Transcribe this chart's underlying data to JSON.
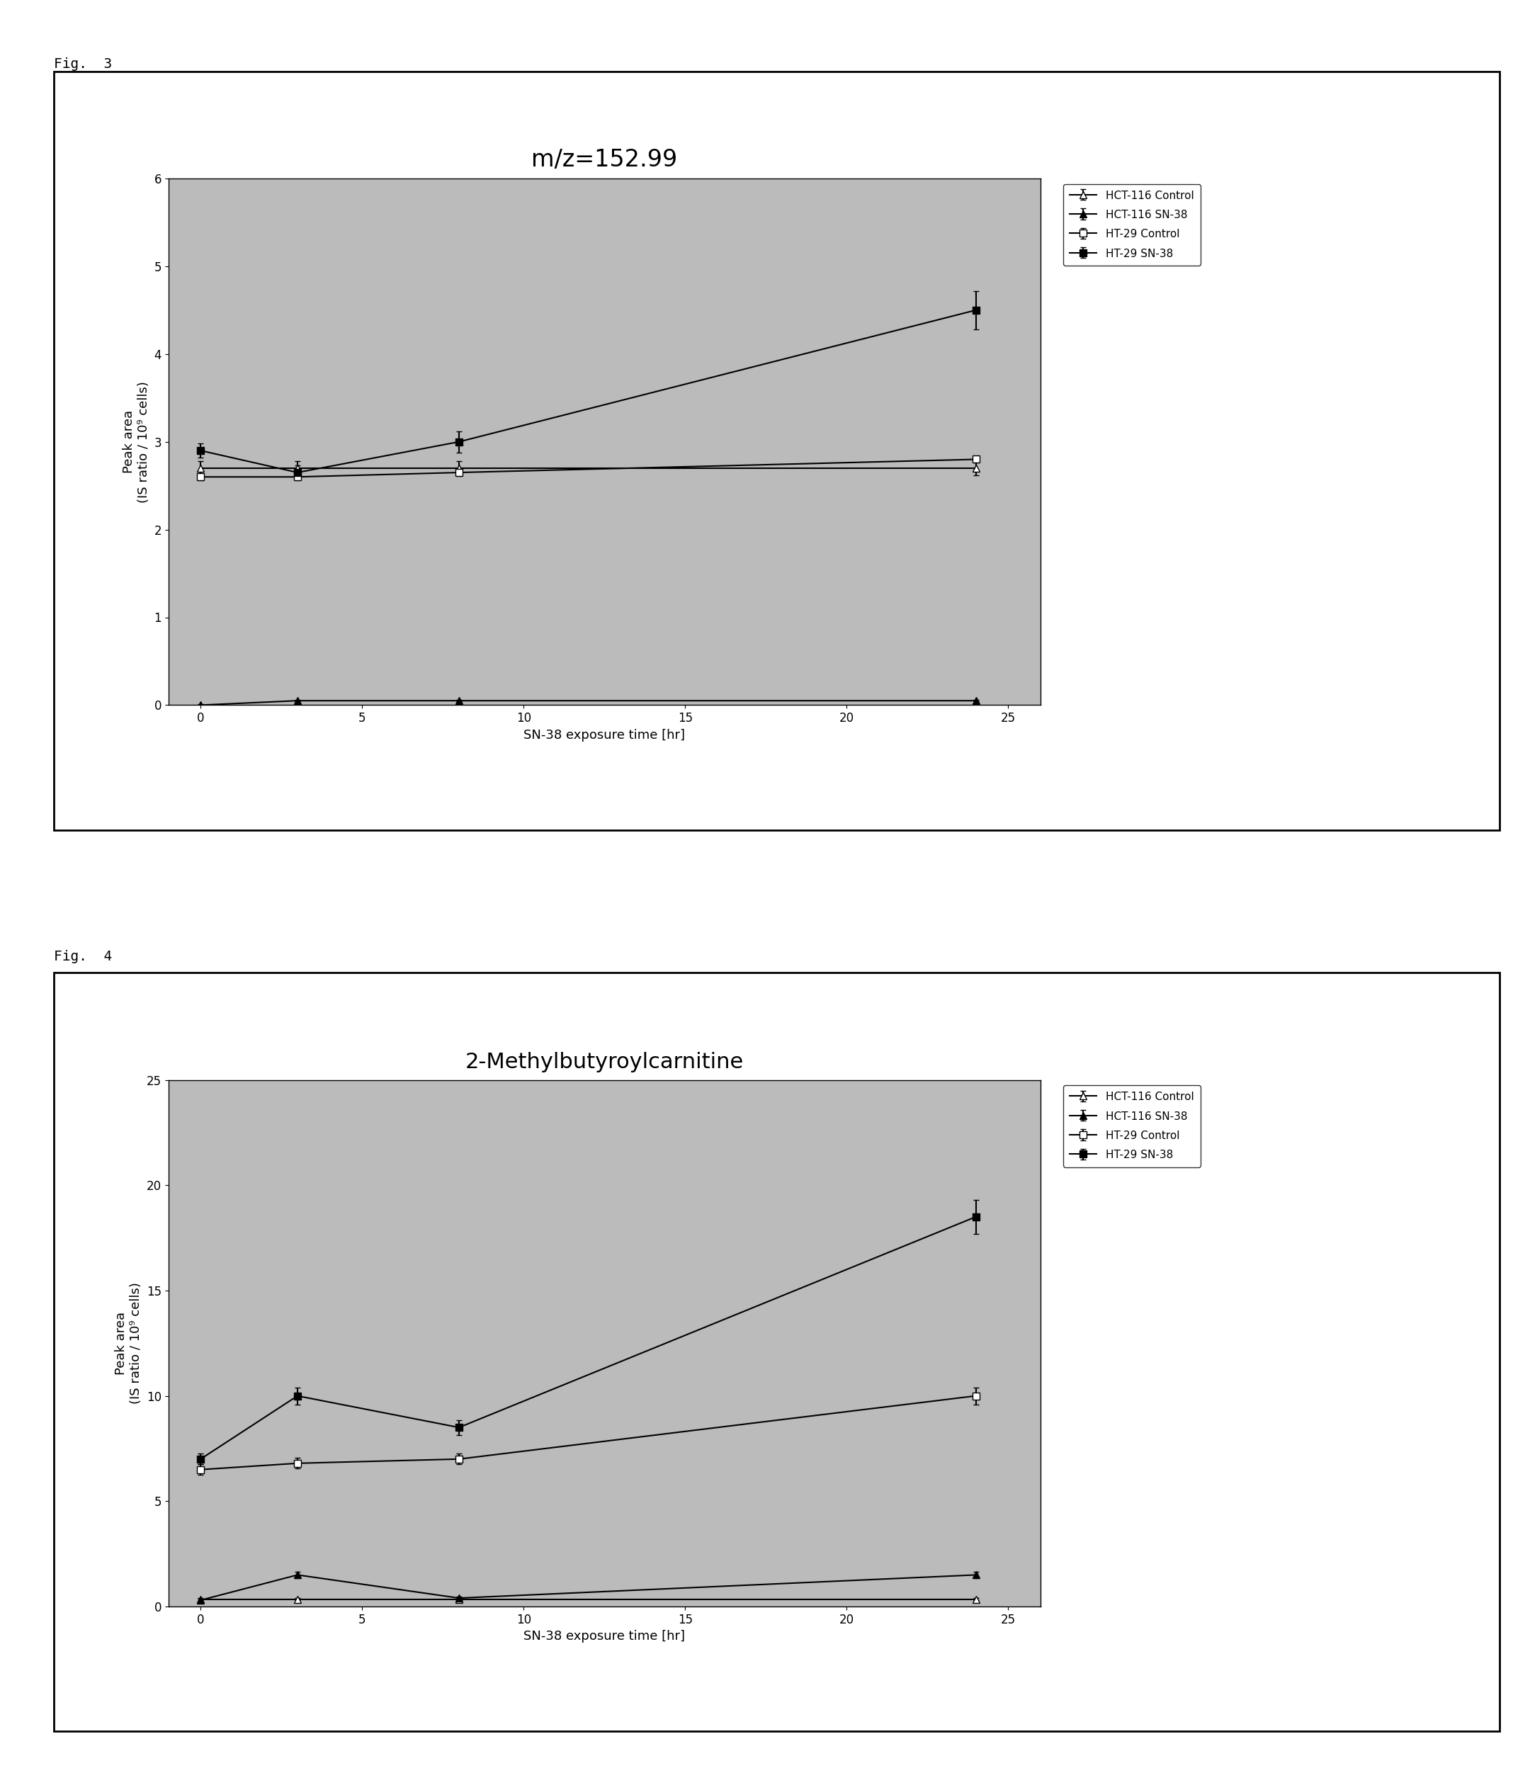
{
  "fig3": {
    "title": "m/z=152.99",
    "xlabel": "SN-38 exposure time [hr]",
    "ylabel": "Peak area\n(IS ratio / 10⁹ cells)",
    "xlim": [
      -1,
      26
    ],
    "ylim": [
      0,
      6
    ],
    "yticks": [
      0,
      1,
      2,
      3,
      4,
      5,
      6
    ],
    "xticks": [
      0,
      5,
      10,
      15,
      20,
      25
    ],
    "x": [
      0,
      3,
      8,
      24
    ],
    "hct116_control": [
      2.7,
      2.7,
      2.7,
      2.7
    ],
    "hct116_sn38": [
      0.0,
      0.05,
      0.05,
      0.05
    ],
    "ht29_control": [
      2.6,
      2.6,
      2.65,
      2.8
    ],
    "ht29_sn38": [
      2.9,
      2.65,
      3.0,
      4.5
    ],
    "hct116_control_err": [
      0.08,
      0.08,
      0.08,
      0.08
    ],
    "hct116_sn38_err": [
      0.01,
      0.01,
      0.01,
      0.01
    ],
    "ht29_control_err": [
      0.04,
      0.04,
      0.04,
      0.04
    ],
    "ht29_sn38_err": [
      0.08,
      0.08,
      0.12,
      0.22
    ],
    "bg_color": "#bbbbbb"
  },
  "fig4": {
    "title": "2-Methylbutyroylcarnitine",
    "xlabel": "SN-38 exposure time [hr]",
    "ylabel": "Peak area\n(IS ratio / 10⁹ cells)",
    "xlim": [
      -1,
      26
    ],
    "ylim": [
      0,
      25
    ],
    "yticks": [
      0,
      5,
      10,
      15,
      20,
      25
    ],
    "xticks": [
      0,
      5,
      10,
      15,
      20,
      25
    ],
    "x": [
      0,
      3,
      8,
      24
    ],
    "hct116_control": [
      0.35,
      0.35,
      0.35,
      0.35
    ],
    "hct116_sn38": [
      0.3,
      1.5,
      0.4,
      1.5
    ],
    "ht29_control": [
      6.5,
      6.8,
      7.0,
      10.0
    ],
    "ht29_sn38": [
      7.0,
      10.0,
      8.5,
      18.5
    ],
    "hct116_control_err": [
      0.04,
      0.04,
      0.04,
      0.04
    ],
    "hct116_sn38_err": [
      0.08,
      0.15,
      0.08,
      0.15
    ],
    "ht29_control_err": [
      0.25,
      0.25,
      0.25,
      0.4
    ],
    "ht29_sn38_err": [
      0.25,
      0.4,
      0.35,
      0.8
    ],
    "bg_color": "#bbbbbb"
  },
  "legend_labels": [
    "HCT-116 Control",
    "HCT-116 SN-38",
    "HT-29 Control",
    "HT-29 SN-38"
  ],
  "fig3_label": "Fig.  3",
  "fig4_label": "Fig.  4",
  "outer_bg": "#ffffff",
  "line_color": "#000000",
  "marker_size": 7,
  "linewidth": 1.5,
  "title_fontsize_3": 24,
  "title_fontsize_4": 22,
  "axis_fontsize": 12,
  "label_fontsize": 13,
  "legend_fontsize": 11,
  "figlabel_fontsize": 14
}
